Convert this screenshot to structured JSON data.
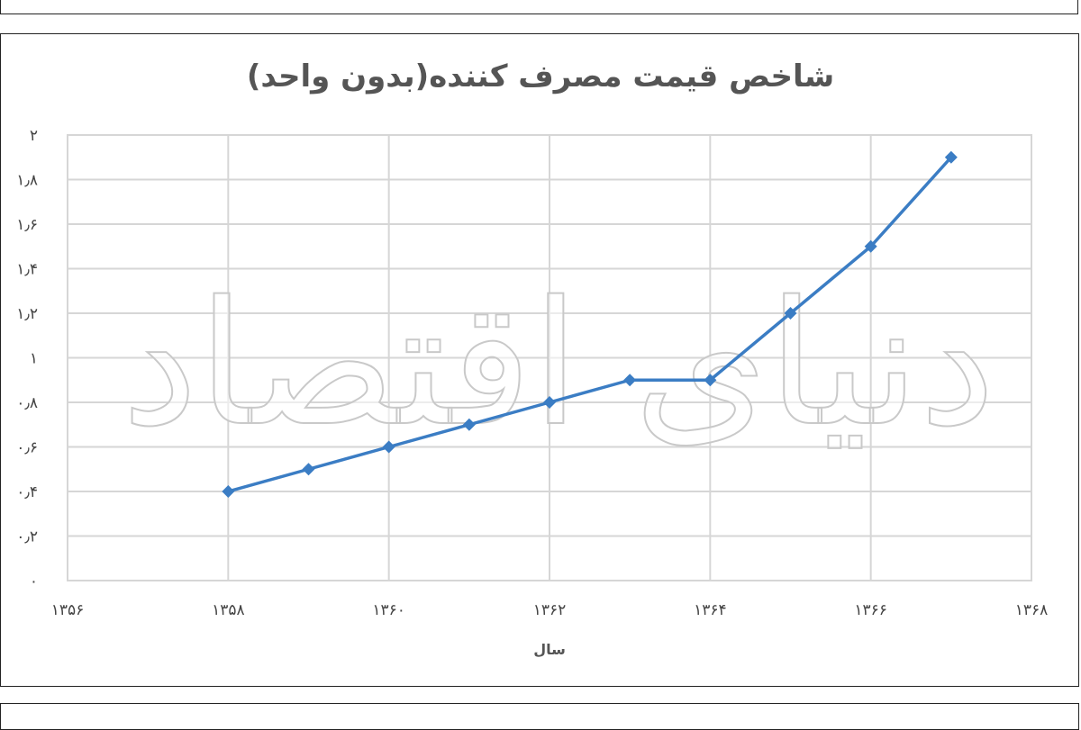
{
  "chart_data": {
    "type": "line",
    "title": "شاخص قیمت مصرف کننده(بدون واحد)",
    "xlabel": "سال",
    "ylabel": "",
    "xlim": [
      1356,
      1368
    ],
    "ylim": [
      0,
      2
    ],
    "x_ticks": [
      1356,
      1358,
      1360,
      1362,
      1364,
      1366,
      1368
    ],
    "y_ticks": [
      0,
      0.2,
      0.4,
      0.6,
      0.8,
      1,
      1.2,
      1.4,
      1.6,
      1.8,
      2
    ],
    "x_tick_labels": [
      "۱۳۵۶",
      "۱۳۵۸",
      "۱۳۶۰",
      "۱۳۶۲",
      "۱۳۶۴",
      "۱۳۶۶",
      "۱۳۶۸"
    ],
    "y_tick_labels": [
      "۰",
      "۰٫۲",
      "۰٫۴",
      "۰٫۶",
      "۰٫۸",
      "۱",
      "۱٫۲",
      "۱٫۴",
      "۱٫۶",
      "۱٫۸",
      "۲"
    ],
    "grid": true,
    "legend": "none",
    "series": [
      {
        "x": [
          1358,
          1359,
          1360,
          1361,
          1362,
          1363,
          1364,
          1365,
          1366,
          1367
        ],
        "values": [
          0.4,
          0.5,
          0.6,
          0.7,
          0.8,
          0.9,
          0.9,
          1.2,
          1.5,
          1.9
        ],
        "color": "#3b7dc4",
        "marker": "diamond"
      }
    ]
  },
  "watermark": {
    "text": "دنیای اقتصاد"
  }
}
